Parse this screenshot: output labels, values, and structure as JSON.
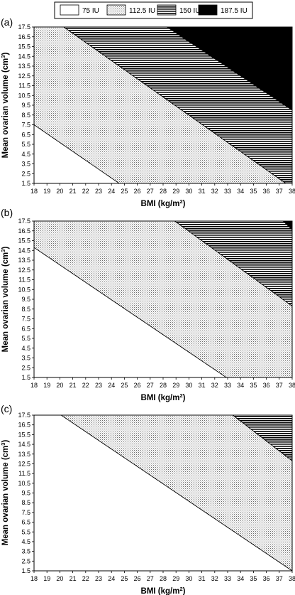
{
  "legend": {
    "items": [
      {
        "label": "75 IU",
        "pattern": "solid-white"
      },
      {
        "label": "112.5 IU",
        "pattern": "dots"
      },
      {
        "label": "150 IU",
        "pattern": "horizontal-lines"
      },
      {
        "label": "187.5 IU",
        "pattern": "solid-black"
      }
    ]
  },
  "chart_data": [
    {
      "panel": "(a)",
      "type": "area",
      "xlabel": "BMI (kg/m",
      "xlabel_sup": "2",
      "xlabel_end": ")",
      "ylabel": "Mean ovarian volume (cm",
      "ylabel_sup": "3",
      "ylabel_end": ")",
      "xlim": [
        18,
        38
      ],
      "ylim": [
        1.5,
        17.5
      ],
      "xticks": [
        "18",
        "19",
        "20",
        "21",
        "22",
        "23",
        "24",
        "25",
        "26",
        "27",
        "28",
        "29",
        "30",
        "31",
        "32",
        "33",
        "34",
        "35",
        "36",
        "37",
        "38"
      ],
      "yticks": [
        "1.5",
        "2.5",
        "3.5",
        "4.5",
        "5.5",
        "6.5",
        "7.5",
        "8.5",
        "9.5",
        "10.5",
        "11.5",
        "12.5",
        "13.5",
        "14.5",
        "15.5",
        "16.5",
        "17.5"
      ],
      "boundaries": [
        {
          "between": [
            "75 IU",
            "112.5 IU"
          ],
          "points": [
            [
              18,
              7.5
            ],
            [
              24.6,
              1.5
            ]
          ]
        },
        {
          "between": [
            "112.5 IU",
            "150 IU"
          ],
          "points": [
            [
              20.3,
              17.5
            ],
            [
              37.5,
              1.5
            ]
          ]
        },
        {
          "between": [
            "150 IU",
            "187.5 IU"
          ],
          "points": [
            [
              28.3,
              17.5
            ],
            [
              38,
              9.0
            ]
          ]
        }
      ]
    },
    {
      "panel": "(b)",
      "type": "area",
      "xlabel": "BMI (kg/m",
      "xlabel_sup": "2",
      "xlabel_end": ")",
      "ylabel": "Mean ovarian volume (cm",
      "ylabel_sup": "3",
      "ylabel_end": ")",
      "xlim": [
        18,
        38
      ],
      "ylim": [
        1.5,
        17.5
      ],
      "xticks": [
        "18",
        "19",
        "20",
        "21",
        "22",
        "23",
        "24",
        "25",
        "26",
        "27",
        "28",
        "29",
        "30",
        "31",
        "32",
        "33",
        "34",
        "35",
        "36",
        "37",
        "38"
      ],
      "yticks": [
        "1.5",
        "2.5",
        "3.5",
        "4.5",
        "5.5",
        "6.5",
        "7.5",
        "8.5",
        "9.5",
        "10.5",
        "11.5",
        "12.5",
        "13.5",
        "14.5",
        "15.5",
        "16.5",
        "17.5"
      ],
      "boundaries": [
        {
          "between": [
            "75 IU",
            "112.5 IU"
          ],
          "points": [
            [
              18,
              14.8
            ],
            [
              32.9,
              1.5
            ]
          ]
        },
        {
          "between": [
            "112.5 IU",
            "150 IU"
          ],
          "points": [
            [
              28.9,
              17.5
            ],
            [
              38,
              8.8
            ]
          ]
        },
        {
          "between": [
            "150 IU",
            "187.5 IU"
          ],
          "points": [
            [
              37.3,
              17.5
            ],
            [
              38,
              16.6
            ]
          ]
        }
      ]
    },
    {
      "panel": "(c)",
      "type": "area",
      "xlabel": "BMI (kg/m",
      "xlabel_sup": "2",
      "xlabel_end": ")",
      "ylabel": "Mean ovarian volume (cm",
      "ylabel_sup": "3",
      "ylabel_end": ")",
      "xlim": [
        18,
        38
      ],
      "ylim": [
        1.5,
        17.5
      ],
      "xticks": [
        "18",
        "19",
        "20",
        "21",
        "22",
        "23",
        "24",
        "25",
        "26",
        "27",
        "28",
        "29",
        "30",
        "31",
        "32",
        "33",
        "34",
        "35",
        "36",
        "37",
        "38"
      ],
      "yticks": [
        "1.5",
        "2.5",
        "3.5",
        "4.5",
        "5.5",
        "6.5",
        "7.5",
        "8.5",
        "9.5",
        "10.5",
        "11.5",
        "12.5",
        "13.5",
        "14.5",
        "15.5",
        "16.5",
        "17.5"
      ],
      "boundaries": [
        {
          "between": [
            "75 IU",
            "112.5 IU"
          ],
          "points": [
            [
              20.1,
              17.5
            ],
            [
              38,
              1.5
            ]
          ]
        },
        {
          "between": [
            "112.5 IU",
            "150 IU"
          ],
          "points": [
            [
              33.4,
              17.5
            ],
            [
              38,
              12.8
            ]
          ]
        }
      ]
    }
  ]
}
